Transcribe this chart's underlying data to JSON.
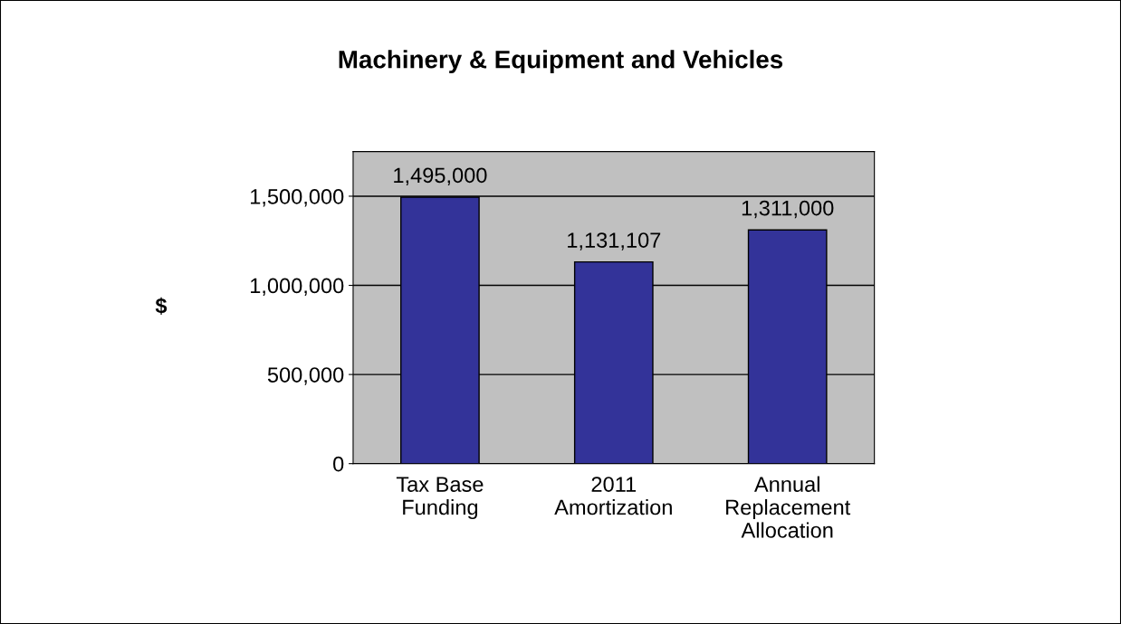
{
  "chart_data": {
    "type": "bar",
    "title": "Machinery & Equipment and Vehicles",
    "ylabel": "$",
    "categories": [
      "Tax Base\nFunding",
      "2011\nAmortization",
      "Annual\nReplacement\nAllocation"
    ],
    "values": [
      1495000,
      1131107,
      1311000
    ],
    "value_labels": [
      "1,495,000",
      "1,131,107",
      "1,311,000"
    ],
    "color": "#333399",
    "ylim": [
      0,
      1750000
    ],
    "yticks": [
      {
        "value": 0,
        "label": "0"
      },
      {
        "value": 500000,
        "label": "500,000"
      },
      {
        "value": 1000000,
        "label": "1,000,000"
      },
      {
        "value": 1500000,
        "label": "1,500,000"
      }
    ],
    "grid": "y",
    "legend": false
  }
}
